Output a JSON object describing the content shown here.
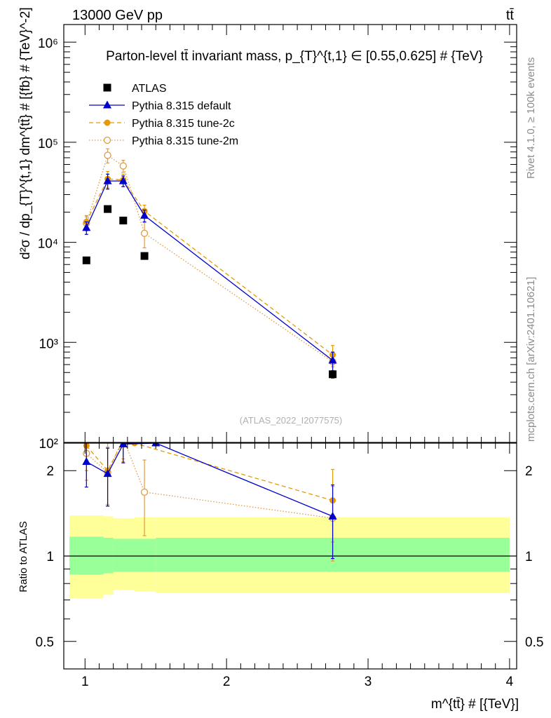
{
  "header": {
    "left": "13000 GeV pp",
    "right": "tt̄"
  },
  "side_labels": {
    "rivet": "Rivet 4.1.0, ≥ 100k events",
    "mcplots": "mcplots.cern.ch [arXiv:2401.10621]"
  },
  "colors": {
    "atlas": "#000000",
    "default": "#0000cc",
    "tune2c": "#e69a00",
    "tune2m": "#e09a40",
    "band_green": "#99ff99",
    "band_yellow": "#ffff99"
  },
  "chart_data": [
    {
      "type": "scatter",
      "title": "Parton-level tt̄ invariant mass, p_{T}^{t,1} ∈ [0.55,0.625] # {TeV}",
      "ylabel": "d²σ / dp_{T}^{t,1} dm^{tt̄} # [{fb} # {TeV}^-2]",
      "xlabel": "m^{tt̄} # [{TeV}]",
      "watermark": "(ATLAS_2022_I2077575)",
      "xlim": [
        0.85,
        4.05
      ],
      "ylim": [
        100,
        1500000
      ],
      "yscale": "log",
      "y_tick_labels": [
        "10²",
        "10³",
        "10⁴",
        "10⁵",
        "10⁶"
      ],
      "y_tick_values": [
        100,
        1000,
        10000,
        100000,
        1000000
      ],
      "legend": {
        "position": "top-left",
        "entries": [
          "ATLAS",
          "Pythia 8.315 default",
          "Pythia 8.315 tune-2c",
          "Pythia 8.315 tune-2m"
        ]
      },
      "series": [
        {
          "name": "ATLAS",
          "marker": "square",
          "x": [
            1.01,
            1.16,
            1.27,
            1.42,
            2.75
          ],
          "y": [
            6600,
            21500,
            16500,
            7300,
            480
          ],
          "err": [
            0,
            0,
            0,
            0,
            40
          ]
        },
        {
          "name": "Pythia 8.315 default",
          "marker": "triangle",
          "line": "solid",
          "x": [
            1.01,
            1.16,
            1.27,
            1.42,
            2.75
          ],
          "y": [
            14000,
            41000,
            41000,
            18500,
            660
          ],
          "err": [
            2000,
            7000,
            5000,
            2500,
            140
          ]
        },
        {
          "name": "Pythia 8.315 tune-2c",
          "marker": "circle",
          "line": "dashed",
          "x": [
            1.01,
            1.16,
            1.27,
            1.42,
            2.75
          ],
          "y": [
            16000,
            43000,
            42000,
            20500,
            750
          ],
          "err": [
            2500,
            8000,
            6000,
            3000,
            180
          ]
        },
        {
          "name": "Pythia 8.315 tune-2m",
          "marker": "open-circle",
          "line": "dotted",
          "x": [
            1.01,
            1.16,
            1.27,
            1.42,
            2.75
          ],
          "y": [
            15500,
            74000,
            58000,
            12300,
            640
          ],
          "err": [
            2500,
            12000,
            8000,
            3500,
            150
          ]
        }
      ]
    },
    {
      "type": "scatter",
      "ylabel": "Ratio to ATLAS",
      "xlabel": "m^{tt̄} # [{TeV}]",
      "xlim": [
        0.85,
        4.05
      ],
      "ylim": [
        0.4,
        2.5
      ],
      "yscale": "log",
      "x_tick_labels": [
        "1",
        "2",
        "3",
        "4"
      ],
      "x_tick_values": [
        1,
        2,
        3,
        4
      ],
      "y_tick_labels": [
        "0.5",
        "1",
        "2"
      ],
      "y_tick_values": [
        0.5,
        1,
        2
      ],
      "reference_line": 1,
      "bands": {
        "edges": [
          0.89,
          1.13,
          1.2,
          1.35,
          1.5,
          4.0
        ],
        "green_low": [
          0.86,
          0.87,
          0.88,
          0.88,
          0.88
        ],
        "green_high": [
          1.17,
          1.16,
          1.15,
          1.15,
          1.16
        ],
        "yellow_low": [
          0.71,
          0.73,
          0.76,
          0.75,
          0.74
        ],
        "yellow_high": [
          1.39,
          1.38,
          1.36,
          1.37,
          1.37
        ]
      },
      "series": [
        {
          "name": "Pythia 8.315 default",
          "x": [
            1.01,
            1.16,
            1.27,
            1.5,
            2.75
          ],
          "y": [
            2.15,
            1.95,
            2.48,
            2.5,
            1.38
          ],
          "err": [
            0.4,
            0.45,
            0.35,
            0,
            0.4
          ]
        },
        {
          "name": "Pythia 8.315 tune-2c",
          "x": [
            1.01,
            1.16,
            1.27,
            1.35,
            2.75
          ],
          "y": [
            2.45,
            2.0,
            2.55,
            2.5,
            1.57
          ],
          "err": [
            0.45,
            0.5,
            0.4,
            0,
            0.45
          ]
        },
        {
          "name": "Pythia 8.315 tune-2m",
          "x": [
            1.01,
            1.16,
            1.27,
            1.42,
            2.75
          ],
          "y": [
            2.3,
            1.97,
            2.6,
            1.68,
            1.36
          ],
          "err": [
            0.45,
            0.45,
            0.4,
            0.5,
            0.4
          ]
        }
      ]
    }
  ]
}
